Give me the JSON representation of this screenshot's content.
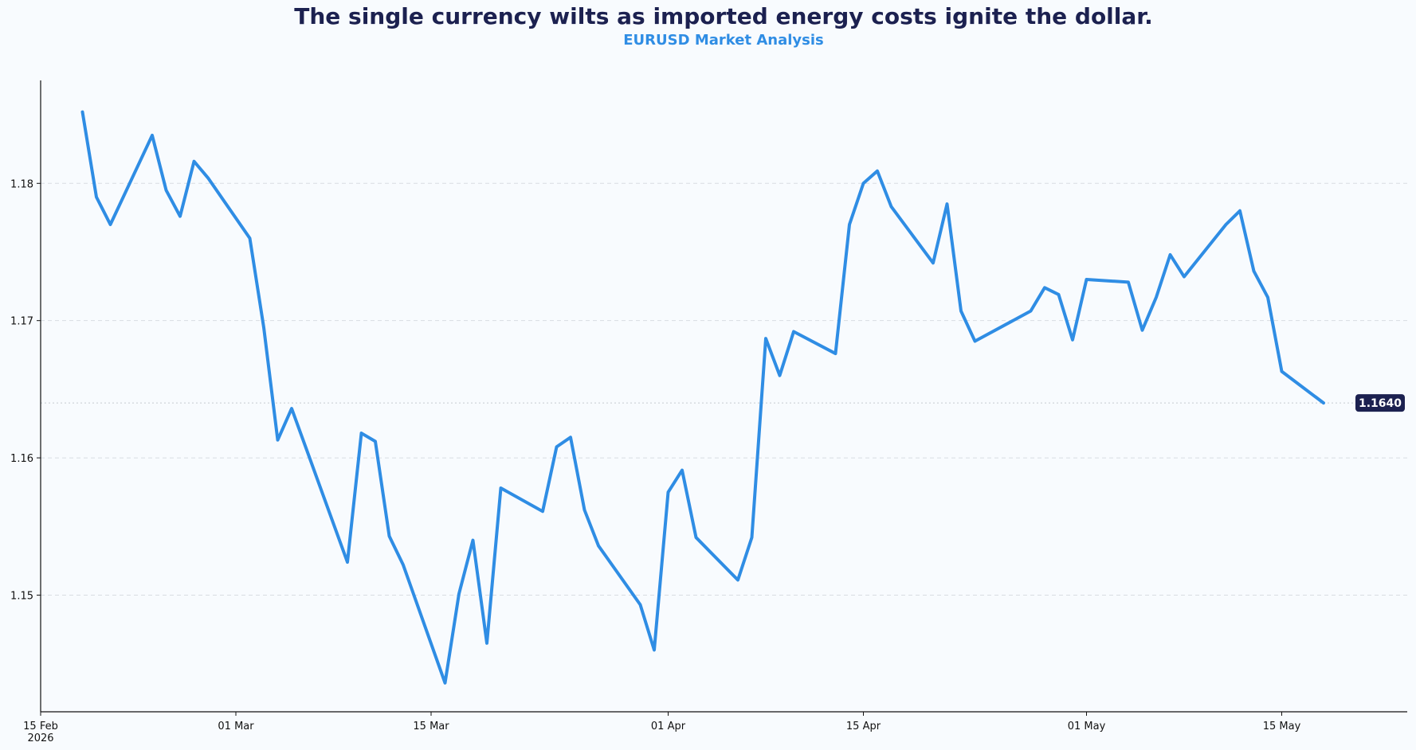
{
  "title": "The single currency wilts as imported energy costs ignite the dollar.",
  "subtitle": "EURUSD Market Analysis",
  "colors": {
    "line": "#2f8de4",
    "title": "#1c2150",
    "subtitle": "#2f8de4",
    "badge_bg": "#1c2150",
    "grid": "#d8dde2",
    "background": "#f8fbfe"
  },
  "chart_data": {
    "type": "line",
    "title": "The single currency wilts as imported energy costs ignite the dollar.",
    "subtitle": "EURUSD Market Analysis",
    "xlabel": "",
    "ylabel": "",
    "x_type": "date",
    "xlim": [
      "2026-02-15",
      "2026-05-24"
    ],
    "ylim": [
      1.1415,
      1.1875
    ],
    "grid": true,
    "legend": "none",
    "x_ticks": [
      {
        "date": "2026-02-15",
        "label": "15 Feb",
        "sublabel": "2026"
      },
      {
        "date": "2026-03-01",
        "label": "01 Mar",
        "sublabel": ""
      },
      {
        "date": "2026-03-15",
        "label": "15 Mar",
        "sublabel": ""
      },
      {
        "date": "2026-04-01",
        "label": "01 Apr",
        "sublabel": ""
      },
      {
        "date": "2026-04-15",
        "label": "15 Apr",
        "sublabel": ""
      },
      {
        "date": "2026-05-01",
        "label": "01 May",
        "sublabel": ""
      },
      {
        "date": "2026-05-15",
        "label": "15 May",
        "sublabel": ""
      }
    ],
    "y_ticks": [
      {
        "value": 1.15,
        "label": "1.15"
      },
      {
        "value": 1.16,
        "label": "1.16"
      },
      {
        "value": 1.17,
        "label": "1.17"
      },
      {
        "value": 1.18,
        "label": "1.18"
      }
    ],
    "last_value_label": "1.1640",
    "last_value": 1.164,
    "series": [
      {
        "x": [
          "2026-02-18",
          "2026-02-19",
          "2026-02-20",
          "2026-02-23",
          "2026-02-24",
          "2026-02-25",
          "2026-02-26",
          "2026-02-27",
          "2026-03-02",
          "2026-03-03",
          "2026-03-04",
          "2026-03-05",
          "2026-03-09",
          "2026-03-10",
          "2026-03-11",
          "2026-03-12",
          "2026-03-13",
          "2026-03-16",
          "2026-03-17",
          "2026-03-18",
          "2026-03-19",
          "2026-03-20",
          "2026-03-23",
          "2026-03-24",
          "2026-03-25",
          "2026-03-26",
          "2026-03-27",
          "2026-03-30",
          "2026-03-31",
          "2026-04-01",
          "2026-04-02",
          "2026-04-03",
          "2026-04-06",
          "2026-04-07",
          "2026-04-08",
          "2026-04-09",
          "2026-04-10",
          "2026-04-13",
          "2026-04-14",
          "2026-04-15",
          "2026-04-16",
          "2026-04-17",
          "2026-04-20",
          "2026-04-21",
          "2026-04-22",
          "2026-04-23",
          "2026-04-27",
          "2026-04-28",
          "2026-04-29",
          "2026-04-30",
          "2026-05-01",
          "2026-05-04",
          "2026-05-05",
          "2026-05-06",
          "2026-05-07",
          "2026-05-08",
          "2026-05-11",
          "2026-05-12",
          "2026-05-13",
          "2026-05-14",
          "2026-05-15",
          "2026-05-18"
        ],
        "y": [
          1.1852,
          1.179,
          1.177,
          1.1835,
          1.1795,
          1.1776,
          1.1816,
          1.1804,
          1.176,
          1.1695,
          1.1613,
          1.1636,
          1.1524,
          1.1618,
          1.1612,
          1.1543,
          1.1522,
          1.1436,
          1.1501,
          1.154,
          1.1465,
          1.1578,
          1.1561,
          1.1608,
          1.1615,
          1.1562,
          1.1536,
          1.1493,
          1.146,
          1.1575,
          1.1591,
          1.1542,
          1.1511,
          1.1542,
          1.1687,
          1.166,
          1.1692,
          1.1676,
          1.177,
          1.18,
          1.1809,
          1.1783,
          1.1742,
          1.1785,
          1.1707,
          1.1685,
          1.1707,
          1.1724,
          1.1719,
          1.1686,
          1.173,
          1.1728,
          1.1693,
          1.1717,
          1.1748,
          1.1732,
          1.177,
          1.178,
          1.1736,
          1.1717,
          1.1663,
          1.164
        ]
      }
    ]
  }
}
